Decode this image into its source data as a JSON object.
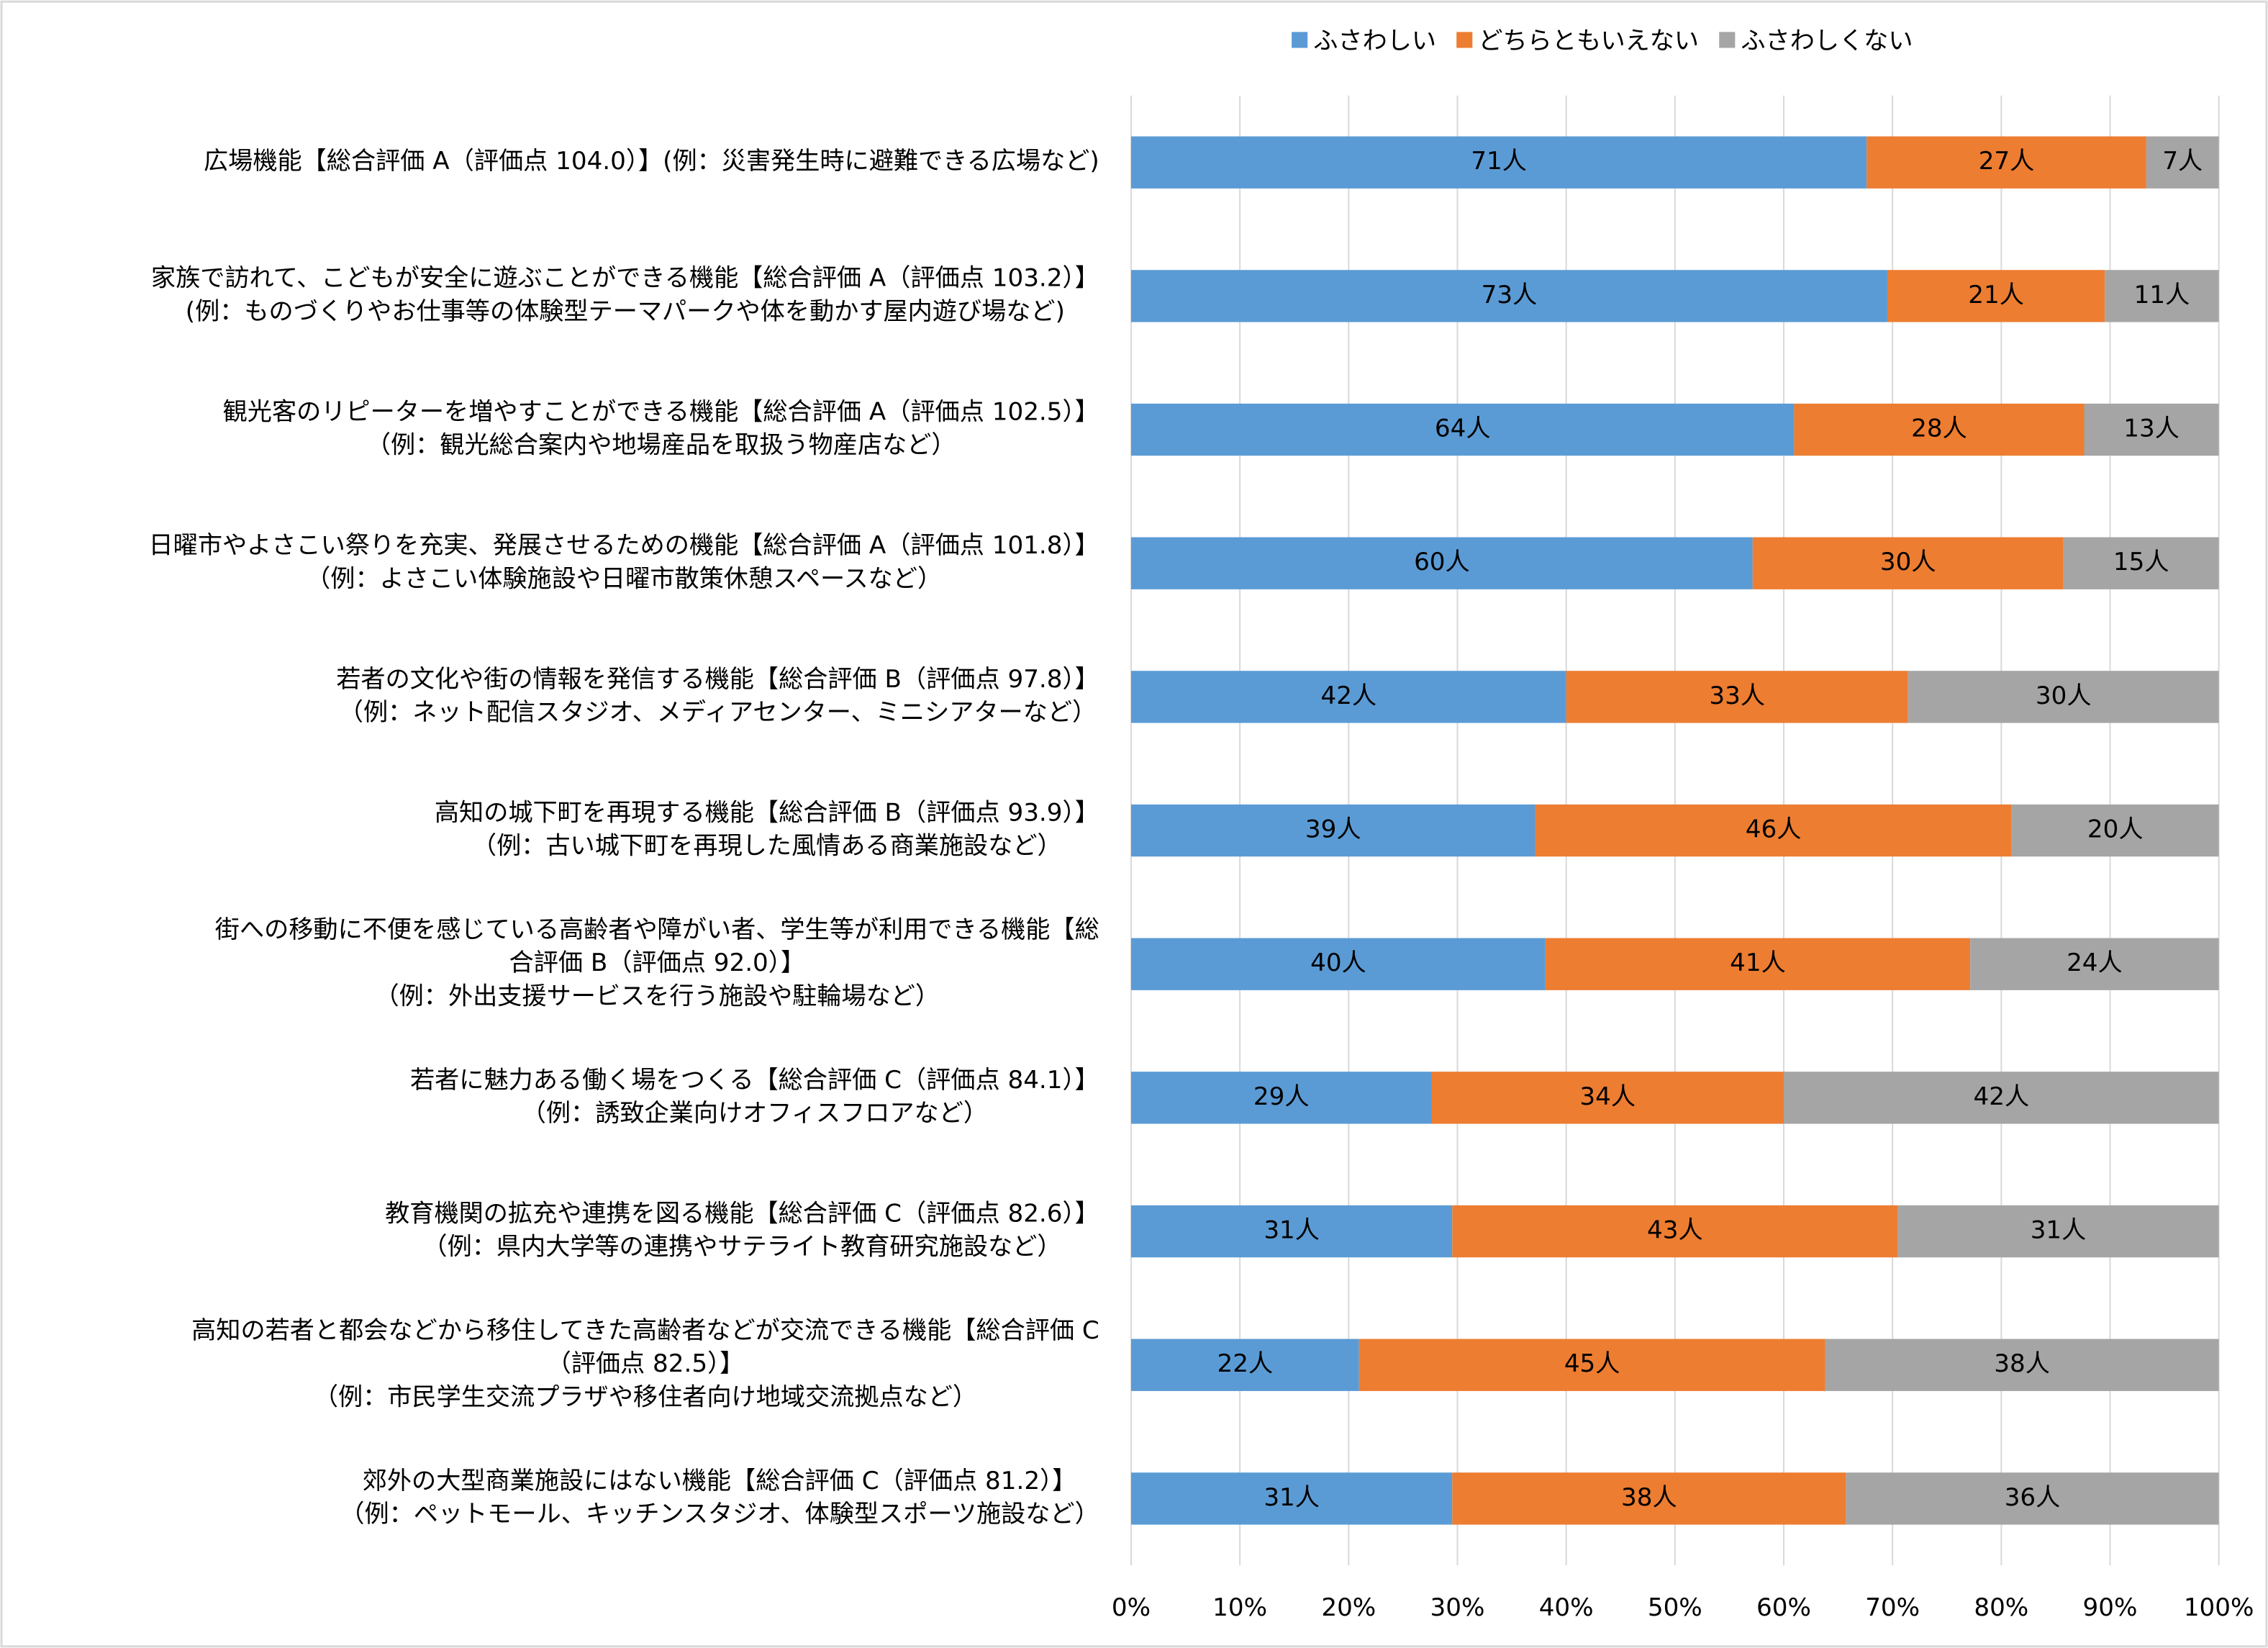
{
  "chart_data": {
    "type": "stacked_percent_bar",
    "orientation": "horizontal",
    "categories": [
      [
        "広場機能【総合評価 A（評価点 104.0）】(例：災害発生時に避難できる広場など)"
      ],
      [
        "家族で訪れて、こどもが安全に遊ぶことができる機能【総合評価 A（評価点 103.2）】",
        "(例：ものづくりやお仕事等の体験型テーマパークや体を動かす屋内遊び場など)"
      ],
      [
        "観光客のリピーターを増やすことができる機能【総合評価 A（評価点 102.5）】",
        "（例：観光総合案内や地場産品を取扱う物産店など）"
      ],
      [
        "日曜市やよさこい祭りを充実、発展させるための機能【総合評価 A（評価点 101.8）】",
        "（例：よさこい体験施設や日曜市散策休憩スペースなど）"
      ],
      [
        "若者の文化や街の情報を発信する機能【総合評価 B（評価点 97.8）】",
        "（例：ネット配信スタジオ、メディアセンター、ミニシアターなど）"
      ],
      [
        "高知の城下町を再現する機能【総合評価 B（評価点 93.9）】",
        "（例：古い城下町を再現した風情ある商業施設など）"
      ],
      [
        "街への移動に不便を感じている高齢者や障がい者、学生等が利用できる機能【総",
        "合評価 B（評価点 92.0）】",
        "（例：外出支援サービスを行う施設や駐輪場など）"
      ],
      [
        "若者に魅力ある働く場をつくる【総合評価 C（評価点 84.1）】",
        "（例：誘致企業向けオフィスフロアなど）"
      ],
      [
        "教育機関の拡充や連携を図る機能【総合評価 C（評価点 82.6）】",
        "（例：県内大学等の連携やサテライト教育研究施設など）"
      ],
      [
        "高知の若者と都会などから移住してきた高齢者などが交流できる機能【総合評価 C",
        "（評価点 82.5）】",
        "（例：市民学生交流プラザや移住者向け地域交流拠点など）"
      ],
      [
        "郊外の大型商業施設にはない機能【総合評価 C（評価点 81.2）】",
        "（例：ペットモール、キッチンスタジオ、体験型スポーツ施設など）"
      ]
    ],
    "series": [
      {
        "name": "ふさわしい",
        "color": "#5b9bd5",
        "values": [
          71,
          73,
          64,
          60,
          42,
          39,
          40,
          29,
          31,
          22,
          31
        ],
        "value_labels": [
          "71人",
          "73人",
          "64人",
          "60人",
          "42人",
          "39人",
          "40人",
          "29人",
          "31人",
          "22人",
          "31人"
        ]
      },
      {
        "name": "どちらともいえない",
        "color": "#ed7d31",
        "values": [
          27,
          21,
          28,
          30,
          33,
          46,
          41,
          34,
          43,
          45,
          38
        ],
        "value_labels": [
          "27人",
          "21人",
          "28人",
          "30人",
          "33人",
          "46人",
          "41人",
          "34人",
          "43人",
          "45人",
          "38人"
        ]
      },
      {
        "name": "ふさわしくない",
        "color": "#a5a5a5",
        "values": [
          7,
          11,
          13,
          15,
          30,
          20,
          24,
          42,
          31,
          38,
          36
        ],
        "value_labels": [
          "7人",
          "11人",
          "13人",
          "15人",
          "30人",
          "20人",
          "24人",
          "42人",
          "31人",
          "38人",
          "36人"
        ]
      }
    ],
    "xlim": [
      0,
      100
    ],
    "xticks": [
      {
        "value": 0,
        "label": "0%"
      },
      {
        "value": 10,
        "label": "10%"
      },
      {
        "value": 20,
        "label": "20%"
      },
      {
        "value": 30,
        "label": "30%"
      },
      {
        "value": 40,
        "label": "40%"
      },
      {
        "value": 50,
        "label": "50%"
      },
      {
        "value": 60,
        "label": "60%"
      },
      {
        "value": 70,
        "label": "70%"
      },
      {
        "value": 80,
        "label": "80%"
      },
      {
        "value": 90,
        "label": "90%"
      },
      {
        "value": 100,
        "label": "100%"
      }
    ],
    "grid": true,
    "legend": "top"
  }
}
